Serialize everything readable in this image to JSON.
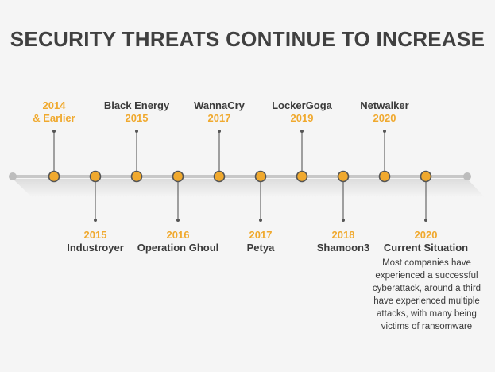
{
  "title": "SECURITY THREATS CONTINUE TO INCREASE",
  "events": [
    {
      "year": "2014",
      "year_line2": "& Earlier",
      "name": "",
      "side": "top"
    },
    {
      "year": "2015",
      "name": "Industroyer",
      "side": "bottom"
    },
    {
      "year": "2015",
      "name": "Black Energy",
      "side": "top"
    },
    {
      "year": "2016",
      "name": "Operation Ghoul",
      "side": "bottom"
    },
    {
      "year": "2017",
      "name": "WannaCry",
      "side": "top"
    },
    {
      "year": "2017",
      "name": "Petya",
      "side": "bottom"
    },
    {
      "year": "2019",
      "name": "LockerGoga",
      "side": "top"
    },
    {
      "year": "2018",
      "name": "Shamoon3",
      "side": "bottom"
    },
    {
      "year": "2020",
      "name": "Netwalker",
      "side": "top"
    },
    {
      "year": "2020",
      "name": "Current Situation",
      "side": "bottom"
    }
  ],
  "current_situation_description": "Most companies have experienced a successful cyberattack, around a third have experienced multiple attacks, with many being victims of ransomware",
  "colors": {
    "accent": "#f0a92e",
    "node_fill": "#f0a92e",
    "node_stroke": "#555555",
    "timeline": "#c8c8c8",
    "text_dark": "#3a3a3a"
  }
}
